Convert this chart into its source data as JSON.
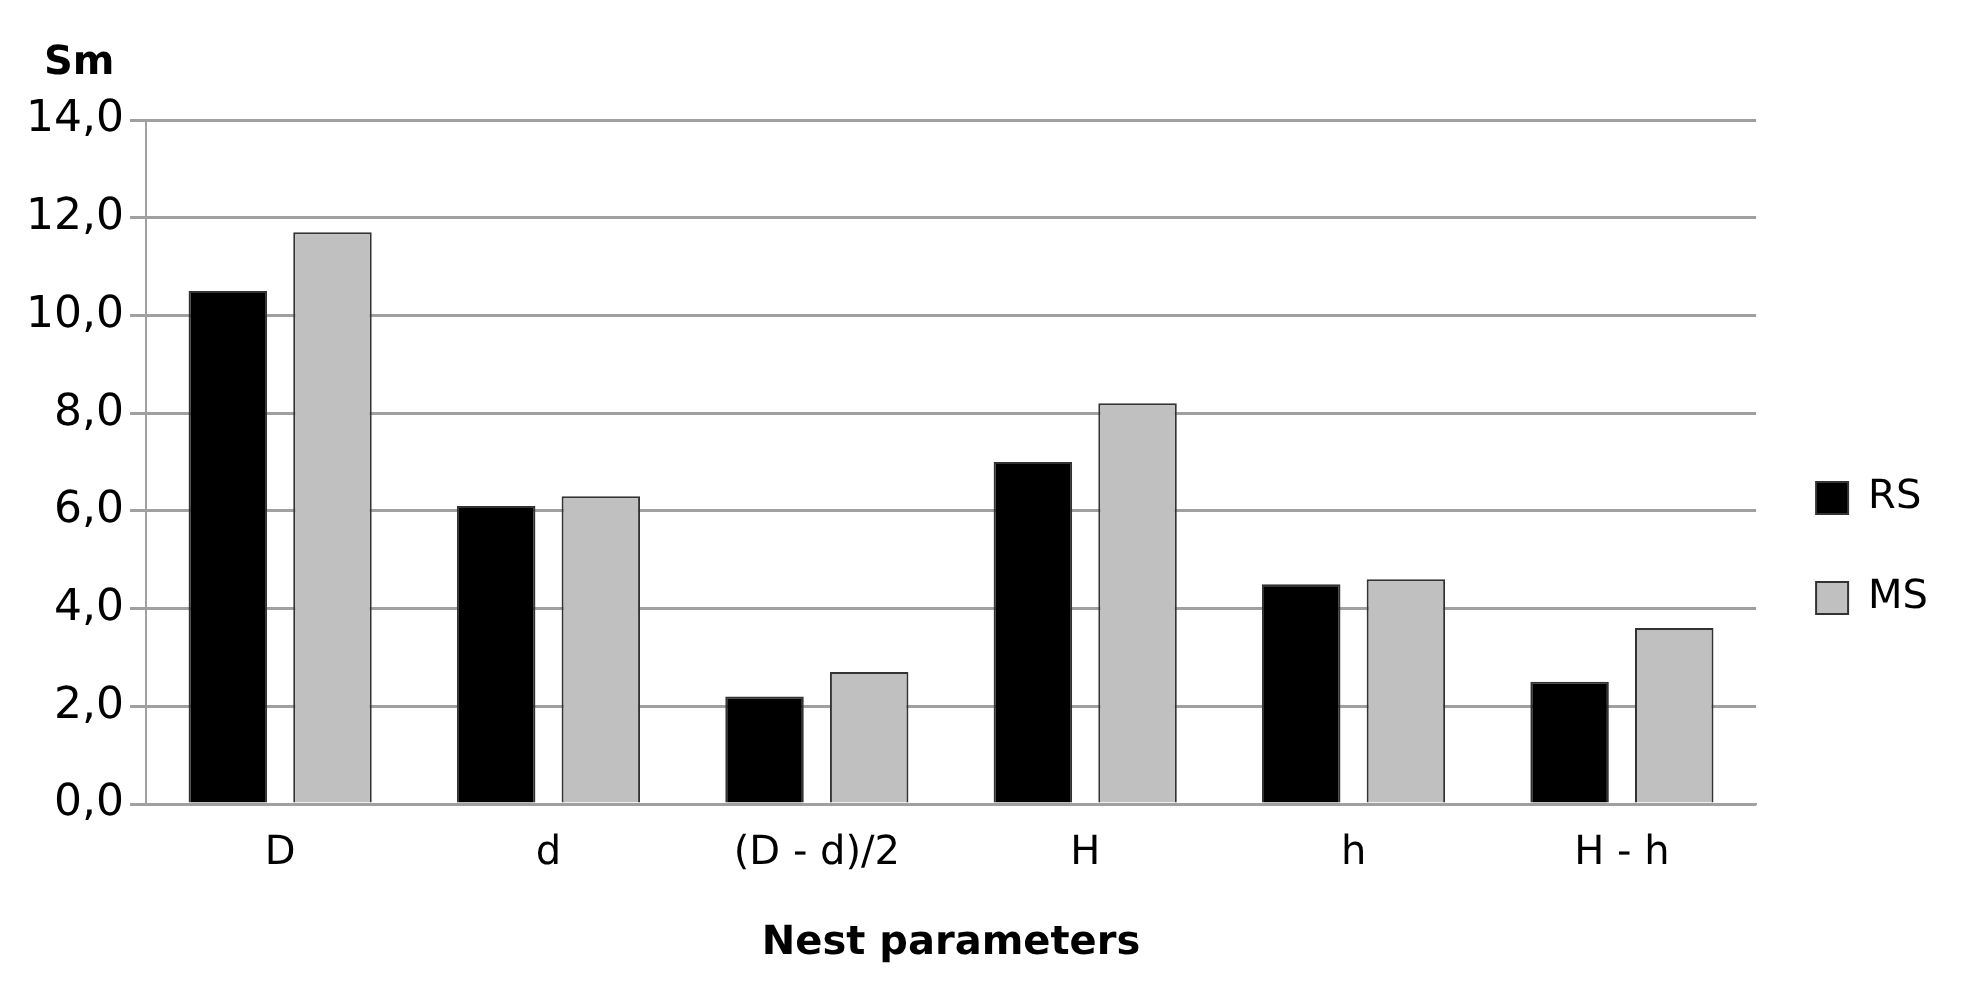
{
  "chart_data": {
    "type": "bar",
    "ylabel": "Sm",
    "xlabel": "Nest parameters",
    "categories": [
      "D",
      "d",
      "(D - d)/2",
      "H",
      "h",
      "H - h"
    ],
    "series": [
      {
        "name": "RS",
        "color": "#000000",
        "values": [
          10.5,
          6.1,
          2.2,
          7.0,
          4.5,
          2.5
        ]
      },
      {
        "name": "MS",
        "color": "#c0c0c0",
        "values": [
          11.7,
          6.3,
          2.7,
          8.2,
          4.6,
          3.6
        ]
      }
    ],
    "ylim": [
      0,
      14
    ],
    "yticks": [
      {
        "value": 0,
        "label": "0,0"
      },
      {
        "value": 2,
        "label": "2,0"
      },
      {
        "value": 4,
        "label": "4,0"
      },
      {
        "value": 6,
        "label": "6,0"
      },
      {
        "value": 8,
        "label": "8,0"
      },
      {
        "value": 10,
        "label": "10,0"
      },
      {
        "value": 12,
        "label": "12,0"
      },
      {
        "value": 14,
        "label": "14,0"
      }
    ],
    "grid": "y",
    "legend": "right"
  }
}
